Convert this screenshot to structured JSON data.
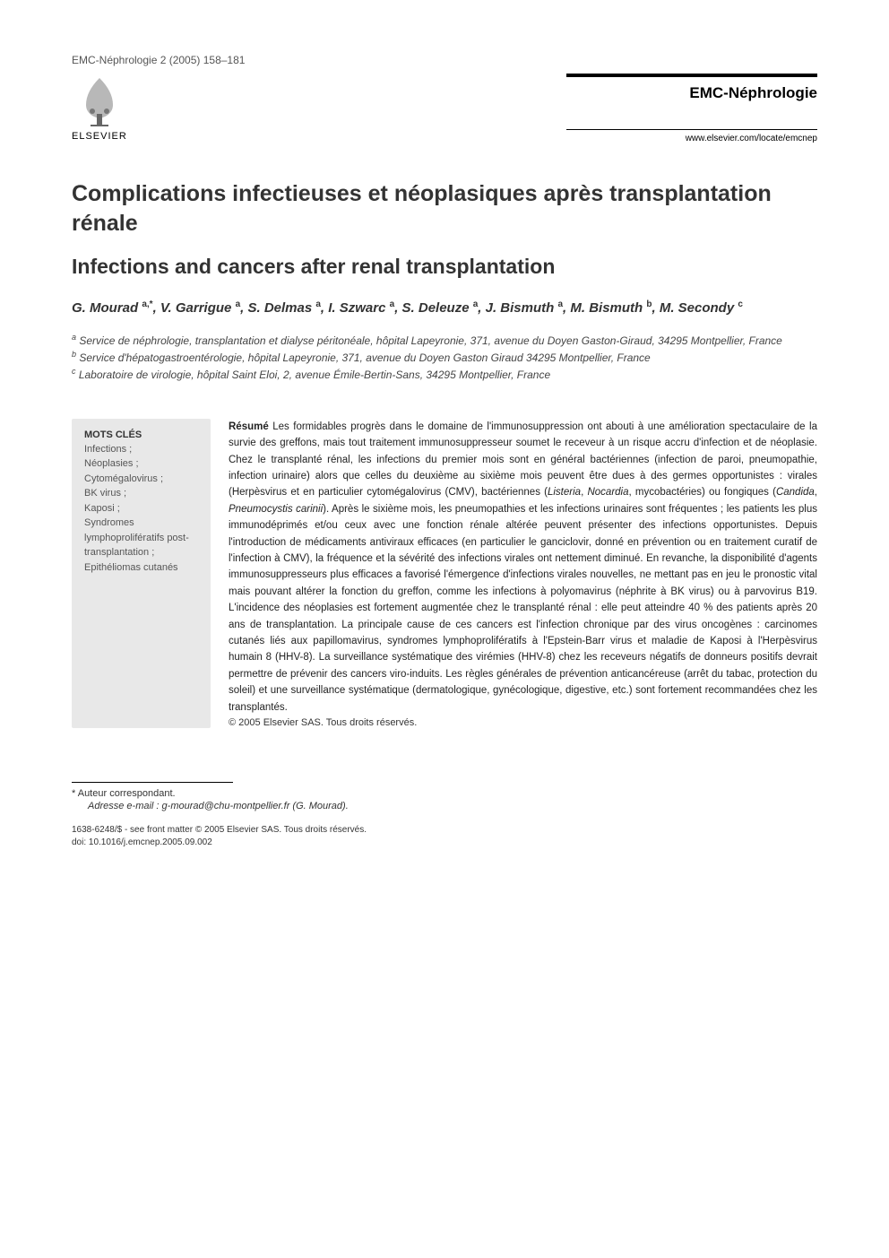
{
  "header": {
    "journal_ref": "EMC-Néphrologie 2 (2005) 158–181",
    "publisher_name": "ELSEVIER",
    "journal_name": "EMC-Néphrologie",
    "journal_url": "www.elsevier.com/locate/emcnep"
  },
  "title_fr": "Complications infectieuses et néoplasiques après transplantation rénale",
  "title_en": "Infections and cancers after renal transplantation",
  "authors_html": "G. Mourad <sup>a,*</sup>, V. Garrigue <sup>a</sup>, S. Delmas <sup>a</sup>, I. Szwarc <sup>a</sup>, S. Deleuze <sup>a</sup>, J. Bismuth <sup>a</sup>, M. Bismuth <sup>b</sup>, M. Secondy <sup>c</sup>",
  "affiliations": [
    {
      "sup": "a",
      "text": "Service de néphrologie, transplantation et dialyse péritonéale, hôpital Lapeyronie, 371, avenue du Doyen Gaston-Giraud, 34295 Montpellier, France"
    },
    {
      "sup": "b",
      "text": "Service d'hépatogastroentérologie, hôpital Lapeyronie, 371, avenue du Doyen Gaston Giraud 34295 Montpellier, France"
    },
    {
      "sup": "c",
      "text": "Laboratoire de virologie, hôpital Saint Eloi, 2, avenue Émile-Bertin-Sans, 34295 Montpellier, France"
    }
  ],
  "keywords": {
    "heading": "MOTS CLÉS",
    "items": "Infections ;\nNéoplasies ;\nCytomégalovirus ;\nBK virus ;\nKaposi ;\nSyndromes lymphoprolifératifs post-transplantation ;\nEpithéliomas cutanés"
  },
  "abstract": {
    "label": "Résumé",
    "text": " Les formidables progrès dans le domaine de l'immunosuppression ont abouti à une amélioration spectaculaire de la survie des greffons, mais tout traitement immunosuppresseur soumet le receveur à un risque accru d'infection et de néoplasie. Chez le transplanté rénal, les infections du premier mois sont en général bactériennes (infection de paroi, pneumopathie, infection urinaire) alors que celles du deuxième au sixième mois peuvent être dues à des germes opportunistes : virales (Herpèsvirus et en particulier cytomégalovirus (CMV), bactériennes (Listeria, Nocardia, mycobactéries) ou fongiques (Candida, Pneumocystis carinii). Après le sixième mois, les pneumopathies et les infections urinaires sont fréquentes ; les patients les plus immunodéprimés et/ou ceux avec une fonction rénale altérée peuvent présenter des infections opportunistes. Depuis l'introduction de médicaments antiviraux efficaces (en particulier le ganciclovir, donné en prévention ou en traitement curatif de l'infection à CMV), la fréquence et la sévérité des infections virales ont nettement diminué. En revanche, la disponibilité d'agents immunosuppresseurs plus efficaces a favorisé l'émergence d'infections virales nouvelles, ne mettant pas en jeu le pronostic vital mais pouvant altérer la fonction du greffon, comme les infections à polyomavirus (néphrite à BK virus) ou à parvovirus B19. L'incidence des néoplasies est fortement augmentée chez le transplanté rénal : elle peut atteindre 40 % des patients après 20 ans de transplantation. La principale cause de ces cancers est l'infection chronique par des virus oncogènes : carcinomes cutanés liés aux papillomavirus, syndromes lymphoprolifératifs à l'Epstein-Barr virus et maladie de Kaposi à l'Herpèsvirus humain 8 (HHV-8). La surveillance systématique des virémies (HHV-8) chez les receveurs négatifs de donneurs positifs devrait permettre de prévenir des cancers viro-induits. Les règles générales de prévention anticancéreuse (arrêt du tabac, protection du soleil) et une surveillance systématique (dermatologique, gynécologique, digestive, etc.) sont fortement recommandées chez les transplantés.",
    "copyright": "© 2005 Elsevier SAS. Tous droits réservés."
  },
  "footer": {
    "corr_label": "* Auteur correspondant.",
    "email_label": "Adresse e-mail :",
    "email": "g-mourad@chu-montpellier.fr (G. Mourad).",
    "issn": "1638-6248/$ - see front matter © 2005 Elsevier SAS. Tous droits réservés.",
    "doi": "doi: 10.1016/j.emcnep.2005.09.002"
  },
  "colors": {
    "bg": "#ffffff",
    "text": "#000000",
    "muted": "#555555",
    "keywords_bg": "#e8e8e8"
  }
}
